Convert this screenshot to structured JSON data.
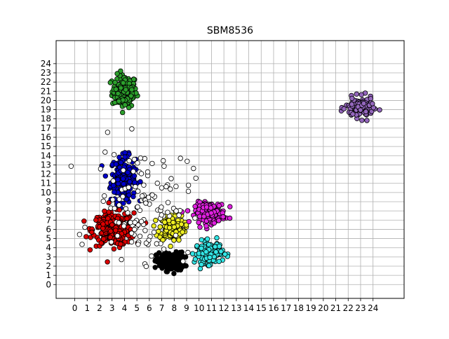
{
  "chart_data": {
    "type": "scatter",
    "title": "SBM8536",
    "xlabel": "",
    "ylabel": "",
    "xlim": [
      -1.5,
      26.5
    ],
    "ylim": [
      -1.5,
      26.5
    ],
    "x_ticks": [
      0,
      1,
      2,
      3,
      4,
      5,
      6,
      7,
      8,
      9,
      10,
      11,
      12,
      13,
      14,
      15,
      16,
      17,
      18,
      19,
      20,
      21,
      22,
      23,
      24
    ],
    "y_ticks": [
      0,
      1,
      2,
      3,
      4,
      5,
      6,
      7,
      8,
      9,
      10,
      11,
      12,
      13,
      14,
      15,
      16,
      17,
      18,
      19,
      20,
      21,
      22,
      23,
      24
    ],
    "grid": true,
    "clusters": [
      {
        "color": "#2ca02c",
        "center": [
          4.0,
          21.0
        ],
        "spread": [
          0.9,
          1.6
        ],
        "count": 150
      },
      {
        "color": "#0000cc",
        "center": [
          3.9,
          11.5
        ],
        "spread": [
          0.9,
          2.2
        ],
        "count": 190
      },
      {
        "color": "#dd0000",
        "center": [
          3.1,
          6.0
        ],
        "spread": [
          1.5,
          1.6
        ],
        "count": 290
      },
      {
        "color": "#eeee22",
        "center": [
          7.8,
          6.2
        ],
        "spread": [
          0.9,
          1.3
        ],
        "count": 150
      },
      {
        "color": "#000000",
        "center": [
          7.7,
          2.5
        ],
        "spread": [
          1.0,
          0.9
        ],
        "count": 160
      },
      {
        "color": "#e020e0",
        "center": [
          10.9,
          7.8
        ],
        "spread": [
          1.1,
          1.0
        ],
        "count": 150
      },
      {
        "color": "#33e6e6",
        "center": [
          10.8,
          3.5
        ],
        "spread": [
          1.0,
          1.1
        ],
        "count": 140
      },
      {
        "color": "#9467bd",
        "center": [
          22.9,
          19.2
        ],
        "spread": [
          1.0,
          1.0
        ],
        "count": 140
      },
      {
        "color": "#ffffff",
        "center": [
          5.5,
          9.0
        ],
        "spread": [
          3.5,
          5.5
        ],
        "count": 120
      }
    ]
  }
}
